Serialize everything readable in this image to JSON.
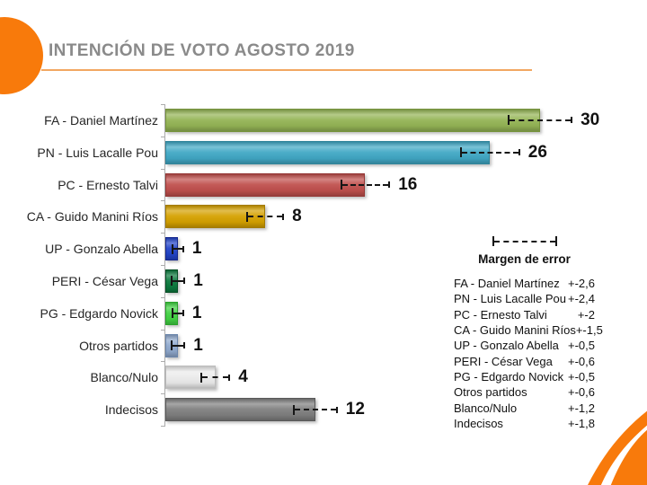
{
  "header": {
    "title": "INTENCIÓN DE VOTO AGOSTO 2019"
  },
  "colors": {
    "accent_orange": "#F87A0B",
    "underline_orange": "#F2A761",
    "title_gray": "#8A8A8A",
    "axis_gray": "#ACACAC",
    "error_bar_black": "#161616"
  },
  "chart_data": {
    "type": "bar",
    "orientation": "horizontal",
    "title": "INTENCIÓN DE VOTO AGOSTO 2019",
    "xlabel": "",
    "ylabel": "",
    "xlim": [
      0,
      38
    ],
    "grid": false,
    "categories": [
      "FA - Daniel Martínez",
      "PN - Luis Lacalle Pou",
      "PC - Ernesto Talvi",
      "CA - Guido Manini Ríos",
      "UP - Gonzalo Abella",
      "PERI - César Vega",
      "PG - Edgardo Novick",
      "Otros partidos",
      "Blanco/Nulo",
      "Indecisos"
    ],
    "values": [
      30,
      26,
      16,
      8,
      1,
      1,
      1,
      1,
      4,
      12
    ],
    "errors": [
      2.6,
      2.4,
      2,
      1.5,
      0.5,
      0.6,
      0.5,
      0.6,
      1.2,
      1.8
    ],
    "bar_colors": [
      "#94B455",
      "#41A8C5",
      "#C0504D",
      "#D5A100",
      "#2244C8",
      "#0C7A3E",
      "#42D243",
      "#8FA8CC",
      "#EBEBEB",
      "#7F7F7F"
    ],
    "bar_borders": [
      "#76933C",
      "#31859B",
      "#953735",
      "#A37B00",
      "#16288E",
      "#064F26",
      "#2AA32B",
      "#6B86AC",
      "#BDBDBD",
      "#595959"
    ]
  },
  "legend": {
    "title": "Margen de error",
    "items": [
      {
        "label": "FA - Daniel Martínez",
        "value": "+-2,6"
      },
      {
        "label": "PN - Luis Lacalle Pou",
        "value": "+-2,4"
      },
      {
        "label": "PC - Ernesto Talvi",
        "value": "+-2"
      },
      {
        "label": "CA - Guido Manini Ríos",
        "value": "+-1,5"
      },
      {
        "label": "UP - Gonzalo Abella",
        "value": "+-0,5"
      },
      {
        "label": "PERI - César Vega",
        "value": "+-0,6"
      },
      {
        "label": "PG - Edgardo Novick",
        "value": "+-0,5"
      },
      {
        "label": "Otros partidos",
        "value": "+-0,6"
      },
      {
        "label": "Blanco/Nulo",
        "value": "+-1,2"
      },
      {
        "label": "Indecisos",
        "value": "+-1,8"
      }
    ]
  }
}
